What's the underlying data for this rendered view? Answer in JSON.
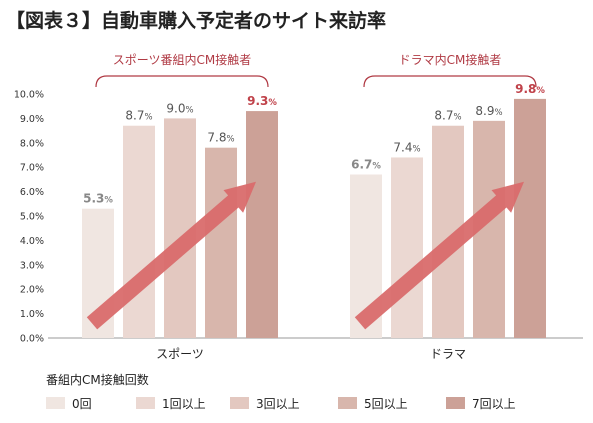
{
  "title": "【図表３】自動車購入予定者のサイト来訪率",
  "chart_data": {
    "type": "bar",
    "categories": [
      "スポーツ",
      "ドラマ"
    ],
    "group_labels": [
      "スポーツ番組内CM接触者",
      "ドラマ内CM接触者"
    ],
    "series": [
      {
        "name": "0回",
        "values": [
          5.3,
          6.7
        ],
        "color": "#f0e6e1"
      },
      {
        "name": "1回以上",
        "values": [
          8.7,
          7.4
        ],
        "color": "#ebd8d2"
      },
      {
        "name": "3回以上",
        "values": [
          9.0,
          8.7
        ],
        "color": "#e3c8c0"
      },
      {
        "name": "5回以上",
        "values": [
          7.8,
          8.9
        ],
        "color": "#d8b6ac"
      },
      {
        "name": "7回以上",
        "values": [
          9.3,
          9.8
        ],
        "color": "#cca197"
      }
    ],
    "value_labels": [
      [
        "5.3",
        "8.7",
        "9.0",
        "7.8",
        "9.3"
      ],
      [
        "6.7",
        "7.4",
        "8.7",
        "8.9",
        "9.8"
      ]
    ],
    "unit": "%",
    "y_ticks": [
      "0.0%",
      "1.0%",
      "2.0%",
      "3.0%",
      "4.0%",
      "5.0%",
      "6.0%",
      "7.0%",
      "8.0%",
      "9.0%",
      "10.0%"
    ],
    "ylim": [
      0,
      10
    ],
    "legend_title": "番組内CM接触回数",
    "legend_position": "bottom",
    "grid": false,
    "colors": {
      "highlight": "#c0424a",
      "label": "#555555",
      "first_label": "#888888",
      "arrow": "#d96b6b",
      "bracket": "#b03a44",
      "axis": "#999999"
    }
  }
}
